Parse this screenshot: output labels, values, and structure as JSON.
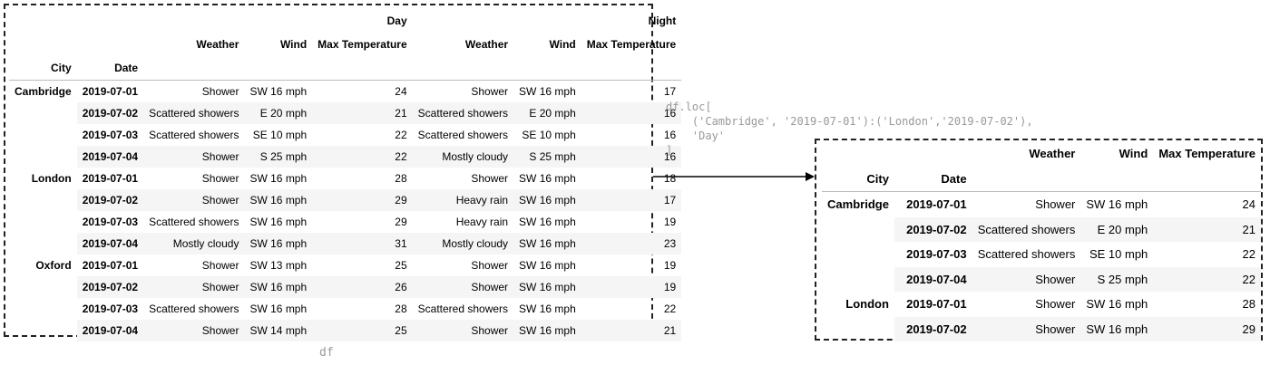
{
  "code": {
    "line1": "df.loc[",
    "line2": "    ('Cambridge', '2019-07-01'):('London','2019-07-02'),",
    "line3": "    'Day'",
    "line4": "]"
  },
  "df_caption": "df",
  "left_table": {
    "top_headers": {
      "day": "Day",
      "night": "Night"
    },
    "sub_headers": {
      "weather": "Weather",
      "wind": "Wind",
      "max_temp": "Max Temperature"
    },
    "index_names": {
      "city": "City",
      "date": "Date"
    },
    "rows": [
      {
        "city": "Cambridge",
        "date": "2019-07-01",
        "d_weather": "Shower",
        "d_wind": "SW 16 mph",
        "d_temp": "24",
        "n_weather": "Shower",
        "n_wind": "SW 16 mph",
        "n_temp": "17"
      },
      {
        "city": "",
        "date": "2019-07-02",
        "d_weather": "Scattered showers",
        "d_wind": "E 20 mph",
        "d_temp": "21",
        "n_weather": "Scattered showers",
        "n_wind": "E 20 mph",
        "n_temp": "16"
      },
      {
        "city": "",
        "date": "2019-07-03",
        "d_weather": "Scattered showers",
        "d_wind": "SE 10 mph",
        "d_temp": "22",
        "n_weather": "Scattered showers",
        "n_wind": "SE 10 mph",
        "n_temp": "16"
      },
      {
        "city": "",
        "date": "2019-07-04",
        "d_weather": "Shower",
        "d_wind": "S 25 mph",
        "d_temp": "22",
        "n_weather": "Mostly cloudy",
        "n_wind": "S 25 mph",
        "n_temp": "16"
      },
      {
        "city": "London",
        "date": "2019-07-01",
        "d_weather": "Shower",
        "d_wind": "SW 16 mph",
        "d_temp": "28",
        "n_weather": "Shower",
        "n_wind": "SW 16 mph",
        "n_temp": "18"
      },
      {
        "city": "",
        "date": "2019-07-02",
        "d_weather": "Shower",
        "d_wind": "SW 16 mph",
        "d_temp": "29",
        "n_weather": "Heavy rain",
        "n_wind": "SW 16 mph",
        "n_temp": "17"
      },
      {
        "city": "",
        "date": "2019-07-03",
        "d_weather": "Scattered showers",
        "d_wind": "SW 16 mph",
        "d_temp": "29",
        "n_weather": "Heavy rain",
        "n_wind": "SW 16 mph",
        "n_temp": "19"
      },
      {
        "city": "",
        "date": "2019-07-04",
        "d_weather": "Mostly cloudy",
        "d_wind": "SW 16 mph",
        "d_temp": "31",
        "n_weather": "Mostly cloudy",
        "n_wind": "SW 16 mph",
        "n_temp": "23"
      },
      {
        "city": "Oxford",
        "date": "2019-07-01",
        "d_weather": "Shower",
        "d_wind": "SW 13 mph",
        "d_temp": "25",
        "n_weather": "Shower",
        "n_wind": "SW 16 mph",
        "n_temp": "19"
      },
      {
        "city": "",
        "date": "2019-07-02",
        "d_weather": "Shower",
        "d_wind": "SW 16 mph",
        "d_temp": "26",
        "n_weather": "Shower",
        "n_wind": "SW 16 mph",
        "n_temp": "19"
      },
      {
        "city": "",
        "date": "2019-07-03",
        "d_weather": "Scattered showers",
        "d_wind": "SW 16 mph",
        "d_temp": "28",
        "n_weather": "Scattered showers",
        "n_wind": "SW 16 mph",
        "n_temp": "22"
      },
      {
        "city": "",
        "date": "2019-07-04",
        "d_weather": "Shower",
        "d_wind": "SW 14 mph",
        "d_temp": "25",
        "n_weather": "Shower",
        "n_wind": "SW 16 mph",
        "n_temp": "21"
      }
    ]
  },
  "right_table": {
    "headers": {
      "weather": "Weather",
      "wind": "Wind",
      "max_temp": "Max Temperature"
    },
    "index_names": {
      "city": "City",
      "date": "Date"
    },
    "rows": [
      {
        "city": "Cambridge",
        "date": "2019-07-01",
        "weather": "Shower",
        "wind": "SW 16 mph",
        "temp": "24"
      },
      {
        "city": "",
        "date": "2019-07-02",
        "weather": "Scattered showers",
        "wind": "E 20 mph",
        "temp": "21"
      },
      {
        "city": "",
        "date": "2019-07-03",
        "weather": "Scattered showers",
        "wind": "SE 10 mph",
        "temp": "22"
      },
      {
        "city": "",
        "date": "2019-07-04",
        "weather": "Shower",
        "wind": "S 25 mph",
        "temp": "22"
      },
      {
        "city": "London",
        "date": "2019-07-01",
        "weather": "Shower",
        "wind": "SW 16 mph",
        "temp": "28"
      },
      {
        "city": "",
        "date": "2019-07-02",
        "weather": "Shower",
        "wind": "SW 16 mph",
        "temp": "29"
      }
    ]
  }
}
